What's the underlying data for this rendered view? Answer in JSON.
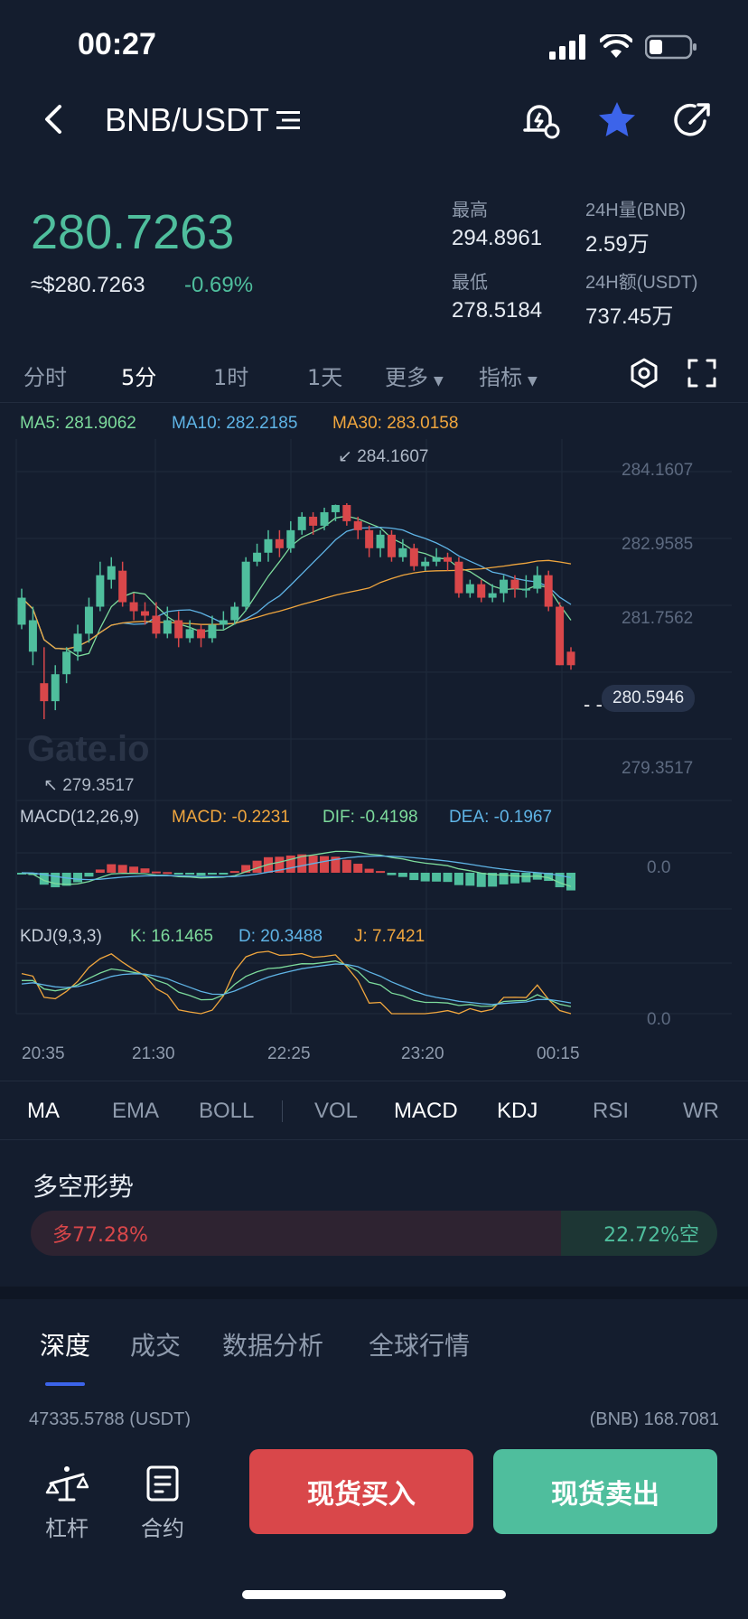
{
  "status_bar": {
    "time": "00:27"
  },
  "header": {
    "pair": "BNB/USDT"
  },
  "ticker": {
    "last_price": "280.7263",
    "usd_price": "≈$280.7263",
    "change": "-0.69%",
    "high_label": "最高",
    "high": "294.8961",
    "low_label": "最低",
    "low": "278.5184",
    "vol_label": "24H量(BNB)",
    "vol": "2.59万",
    "amt_label": "24H额(USDT)",
    "amt": "737.45万"
  },
  "timeframes": [
    {
      "label": "分时"
    },
    {
      "label": "5分"
    },
    {
      "label": "1时"
    },
    {
      "label": "1天"
    },
    {
      "label": "更多"
    },
    {
      "label": "指标"
    }
  ],
  "ma_legend": {
    "ma5": "MA5: 281.9062",
    "ma10": "MA10: 282.2185",
    "ma30": "MA30: 283.0158"
  },
  "price_axis": [
    "284.1607",
    "282.9585",
    "281.7562",
    "280.5946",
    "279.3517"
  ],
  "high_marker": "284.1607",
  "low_marker": "279.3517",
  "watermark": "Gate.io",
  "macd_legend": {
    "name": "MACD(12,26,9)",
    "macd": "MACD: -0.2231",
    "dif": "DIF: -0.4198",
    "dea": "DEA: -0.1967",
    "axis": "0.0"
  },
  "kdj_legend": {
    "name": "KDJ(9,3,3)",
    "k": "K: 16.1465",
    "d": "D: 20.3488",
    "j": "J: 7.7421",
    "axis": "0.0"
  },
  "time_axis": [
    "20:35",
    "21:30",
    "22:25",
    "23:20",
    "00:15"
  ],
  "indicator_tabs": [
    "MA",
    "EMA",
    "BOLL",
    "VOL",
    "MACD",
    "KDJ",
    "RSI",
    "WR"
  ],
  "sentiment": {
    "title": "多空形势",
    "long": "多77.28%",
    "short": "22.72%空",
    "long_pct": 77.28
  },
  "section_tabs": [
    "深度",
    "成交",
    "数据分析",
    "全球行情"
  ],
  "depth": {
    "left": "47335.5788 (USDT)",
    "right": "(BNB) 168.7081"
  },
  "bottom": {
    "leverage": "杠杆",
    "contract": "合约",
    "buy": "现货买入",
    "sell": "现货卖出"
  },
  "colors": {
    "up": "#4fbe9d",
    "down": "#d9474a",
    "ma5": "#7ddb9c",
    "ma10": "#5fb4e6",
    "ma30": "#f0a63e",
    "accent": "#3c64ea"
  },
  "chart_data": {
    "type": "candlestick",
    "x_ticks": [
      "20:35",
      "21:30",
      "22:25",
      "23:20",
      "00:15"
    ],
    "y_ticks": [
      "284.1607",
      "282.9585",
      "281.7562",
      "279.3517"
    ],
    "ylim": [
      279.0,
      284.5
    ],
    "candles": [
      [
        281.5,
        282.1,
        282.3,
        281.4
      ],
      [
        280.9,
        281.6,
        281.9,
        280.6
      ],
      [
        280.2,
        279.8,
        281.0,
        279.4
      ],
      [
        279.8,
        280.4,
        280.6,
        279.6
      ],
      [
        280.4,
        280.9,
        281.0,
        280.2
      ],
      [
        280.9,
        281.3,
        281.5,
        280.7
      ],
      [
        281.3,
        281.9,
        282.1,
        281.1
      ],
      [
        281.9,
        282.6,
        282.9,
        281.8
      ],
      [
        282.5,
        282.8,
        283.0,
        282.3
      ],
      [
        282.7,
        282.0,
        282.9,
        281.9
      ],
      [
        282.0,
        281.8,
        282.2,
        281.6
      ],
      [
        281.8,
        281.7,
        282.0,
        281.5
      ],
      [
        281.7,
        281.3,
        282.0,
        281.2
      ],
      [
        281.3,
        281.6,
        281.9,
        281.2
      ],
      [
        281.6,
        281.2,
        281.8,
        281.0
      ],
      [
        281.2,
        281.4,
        281.6,
        281.1
      ],
      [
        281.4,
        281.2,
        281.5,
        281.0
      ],
      [
        281.2,
        281.5,
        281.7,
        281.1
      ],
      [
        281.5,
        281.6,
        281.8,
        281.4
      ],
      [
        281.6,
        281.9,
        282.0,
        281.5
      ],
      [
        281.9,
        282.9,
        283.0,
        281.8
      ],
      [
        282.9,
        283.1,
        283.3,
        282.8
      ],
      [
        283.1,
        283.4,
        283.6,
        282.9
      ],
      [
        283.4,
        283.2,
        283.6,
        283.0
      ],
      [
        283.2,
        283.6,
        283.8,
        283.1
      ],
      [
        283.6,
        283.9,
        284.0,
        283.5
      ],
      [
        283.9,
        283.7,
        284.0,
        283.5
      ],
      [
        283.7,
        284.0,
        284.1,
        283.6
      ],
      [
        284.0,
        284.16,
        284.17,
        283.8
      ],
      [
        284.16,
        283.8,
        284.2,
        283.7
      ],
      [
        283.8,
        283.6,
        283.9,
        283.4
      ],
      [
        283.6,
        283.2,
        283.7,
        283.0
      ],
      [
        283.2,
        283.5,
        283.6,
        283.0
      ],
      [
        283.5,
        283.0,
        283.6,
        282.9
      ],
      [
        283.0,
        283.2,
        283.4,
        282.9
      ],
      [
        283.2,
        282.8,
        283.3,
        282.7
      ],
      [
        282.8,
        282.9,
        283.0,
        282.7
      ],
      [
        282.9,
        283.0,
        283.2,
        282.8
      ],
      [
        283.0,
        282.9,
        283.1,
        282.7
      ],
      [
        282.9,
        282.2,
        283.0,
        282.1
      ],
      [
        282.2,
        282.4,
        282.5,
        282.1
      ],
      [
        282.4,
        282.1,
        282.5,
        282.0
      ],
      [
        282.1,
        282.2,
        282.4,
        282.0
      ],
      [
        282.2,
        282.5,
        282.6,
        282.0
      ],
      [
        282.5,
        282.3,
        282.6,
        282.1
      ],
      [
        282.3,
        282.3,
        282.6,
        282.1
      ],
      [
        282.3,
        282.6,
        282.8,
        282.2
      ],
      [
        282.6,
        281.9,
        282.7,
        281.8
      ],
      [
        281.9,
        280.6,
        282.0,
        280.6
      ],
      [
        280.9,
        280.6,
        281.0,
        280.5
      ]
    ]
  }
}
